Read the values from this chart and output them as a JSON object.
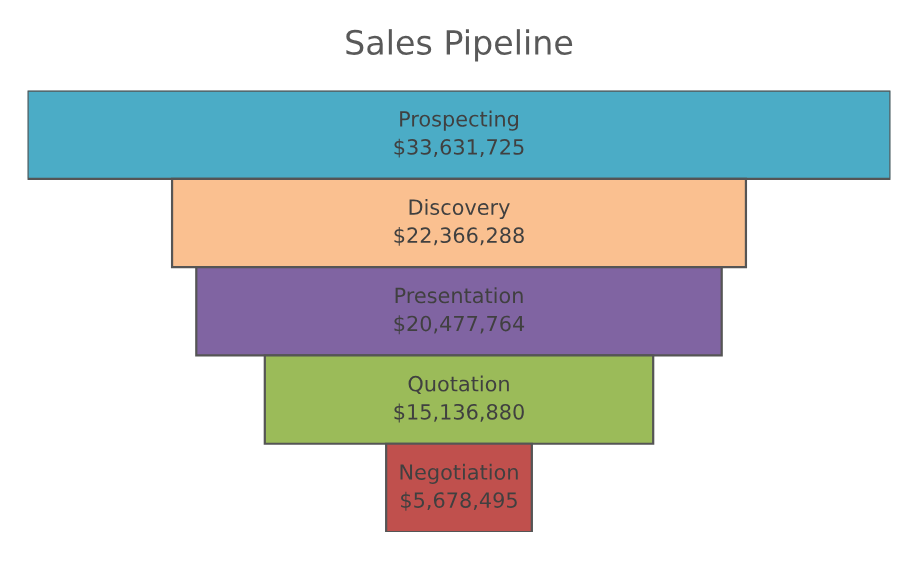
{
  "chart_data": {
    "type": "other",
    "title": "Sales Pipeline",
    "categories": [
      "Prospecting",
      "Discovery",
      "Presentation",
      "Quotation",
      "Negotiation"
    ],
    "values": [
      33631725,
      22366288,
      20477764,
      15136880,
      5678495
    ],
    "value_labels": [
      "$33,631,725",
      "$22,366,288",
      "$20,477,764",
      "$15,136,880",
      "$5,678,495"
    ],
    "colors": [
      "#4bacc6",
      "#fac090",
      "#8064a2",
      "#9bbb59",
      "#c0504d"
    ]
  }
}
